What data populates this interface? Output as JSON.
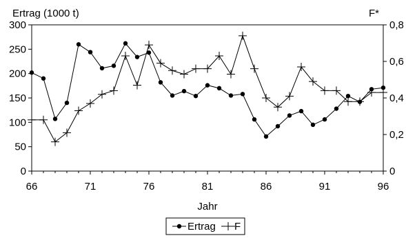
{
  "chart_data": {
    "type": "line",
    "ylabel_left": "Ertrag (1000 t)",
    "ylabel_right": "F*",
    "xlabel": "Jahr",
    "xlim": [
      66,
      96
    ],
    "ylim_left": [
      0,
      300
    ],
    "ylim_right": [
      0,
      0.8
    ],
    "x_ticks": [
      66,
      71,
      76,
      81,
      86,
      91,
      96
    ],
    "y_left_ticks": [
      "0",
      "50",
      "100",
      "150",
      "200",
      "250",
      "300"
    ],
    "y_right_ticks": [
      "0",
      "0,2",
      "0,4",
      "0,6",
      "0,8"
    ],
    "grid": false,
    "legend_position": "bottom-center",
    "x": [
      66,
      67,
      68,
      69,
      70,
      71,
      72,
      73,
      74,
      75,
      76,
      77,
      78,
      79,
      80,
      81,
      82,
      83,
      84,
      85,
      86,
      87,
      88,
      89,
      90,
      91,
      92,
      93,
      94,
      95,
      96
    ],
    "series": [
      {
        "name": "Ertrag",
        "axis": "left",
        "marker": "circle",
        "values": [
          202,
          190,
          107,
          140,
          260,
          244,
          211,
          216,
          262,
          234,
          243,
          182,
          155,
          164,
          154,
          176,
          170,
          155,
          158,
          106,
          71,
          92,
          114,
          123,
          95,
          106,
          128,
          154,
          142,
          168,
          171
        ]
      },
      {
        "name": "F",
        "axis": "right",
        "marker": "plus",
        "values": [
          0.28,
          0.28,
          0.16,
          0.21,
          0.33,
          0.37,
          0.42,
          0.44,
          0.63,
          0.47,
          0.69,
          0.59,
          0.55,
          0.53,
          0.56,
          0.56,
          0.63,
          0.53,
          0.74,
          0.56,
          0.4,
          0.35,
          0.41,
          0.57,
          0.49,
          0.44,
          0.44,
          0.38,
          0.38,
          0.43,
          0.43
        ]
      }
    ]
  }
}
